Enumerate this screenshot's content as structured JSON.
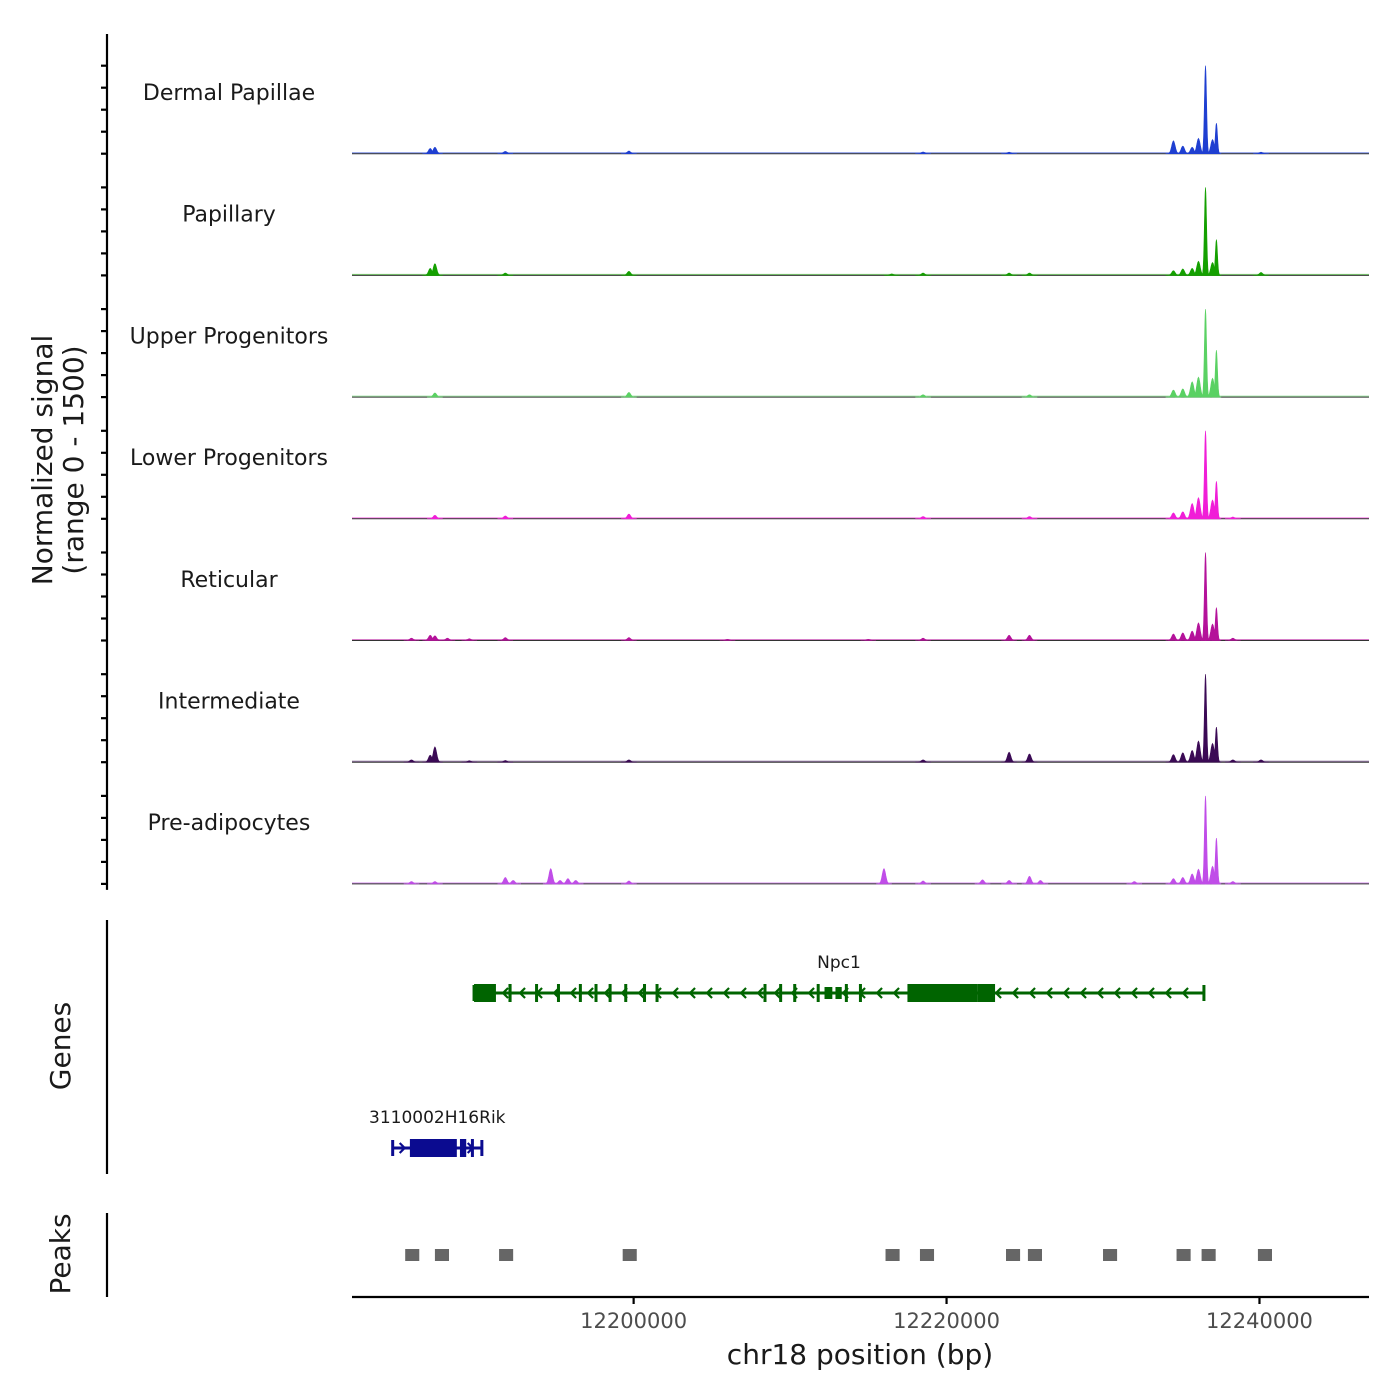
{
  "chart_data": {
    "type": "area",
    "title": "",
    "y_axis_title": [
      "Normalized signal",
      "(range 0 - 1500)"
    ],
    "ylim": [
      0,
      1500
    ],
    "xlabel": "chr18 position (bp)",
    "xlim": [
      12182000,
      12247000
    ],
    "x_ticks": [
      {
        "value": 12200000,
        "label": "12200000"
      },
      {
        "value": 12220000,
        "label": "12220000"
      },
      {
        "value": 12240000,
        "label": "12240000"
      }
    ],
    "series": [
      {
        "name": "Dermal Papillae",
        "color": "#1f3fd1",
        "peaks": [
          [
            12187000,
            90
          ],
          [
            12187300,
            110
          ],
          [
            12191800,
            40
          ],
          [
            12199700,
            45
          ],
          [
            12218500,
            30
          ],
          [
            12224000,
            25
          ],
          [
            12234500,
            220
          ],
          [
            12235100,
            130
          ],
          [
            12235700,
            110
          ],
          [
            12236100,
            260
          ],
          [
            12236550,
            1500
          ],
          [
            12237000,
            240
          ],
          [
            12237250,
            520
          ],
          [
            12240100,
            25
          ]
        ]
      },
      {
        "name": "Papillary",
        "color": "#14a000",
        "peaks": [
          [
            12187000,
            120
          ],
          [
            12187300,
            200
          ],
          [
            12191800,
            40
          ],
          [
            12199700,
            70
          ],
          [
            12216500,
            25
          ],
          [
            12218500,
            40
          ],
          [
            12224000,
            40
          ],
          [
            12225300,
            40
          ],
          [
            12234500,
            80
          ],
          [
            12235100,
            110
          ],
          [
            12235700,
            120
          ],
          [
            12236100,
            240
          ],
          [
            12236550,
            1500
          ],
          [
            12237000,
            220
          ],
          [
            12237250,
            610
          ],
          [
            12240100,
            50
          ]
        ]
      },
      {
        "name": "Upper Progenitors",
        "color": "#5ad163",
        "peaks": [
          [
            12187300,
            70
          ],
          [
            12199700,
            80
          ],
          [
            12218500,
            40
          ],
          [
            12225300,
            40
          ],
          [
            12234500,
            120
          ],
          [
            12235100,
            140
          ],
          [
            12235700,
            260
          ],
          [
            12236100,
            340
          ],
          [
            12236550,
            1500
          ],
          [
            12237000,
            320
          ],
          [
            12237250,
            800
          ]
        ]
      },
      {
        "name": "Lower Progenitors",
        "color": "#f01ed7",
        "peaks": [
          [
            12187300,
            60
          ],
          [
            12191800,
            50
          ],
          [
            12199700,
            80
          ],
          [
            12218500,
            40
          ],
          [
            12225300,
            40
          ],
          [
            12234500,
            100
          ],
          [
            12235100,
            120
          ],
          [
            12235700,
            260
          ],
          [
            12236100,
            360
          ],
          [
            12236550,
            1500
          ],
          [
            12237000,
            320
          ],
          [
            12237250,
            640
          ],
          [
            12238300,
            30
          ]
        ]
      },
      {
        "name": "Reticular",
        "color": "#b4129a",
        "peaks": [
          [
            12185800,
            40
          ],
          [
            12187000,
            90
          ],
          [
            12187300,
            80
          ],
          [
            12188100,
            40
          ],
          [
            12189500,
            30
          ],
          [
            12191800,
            50
          ],
          [
            12199700,
            50
          ],
          [
            12206000,
            20
          ],
          [
            12215000,
            20
          ],
          [
            12218500,
            40
          ],
          [
            12224000,
            90
          ],
          [
            12225300,
            90
          ],
          [
            12234500,
            110
          ],
          [
            12235100,
            130
          ],
          [
            12235700,
            160
          ],
          [
            12236100,
            300
          ],
          [
            12236550,
            1500
          ],
          [
            12237000,
            280
          ],
          [
            12237250,
            560
          ],
          [
            12238300,
            40
          ]
        ]
      },
      {
        "name": "Intermediate",
        "color": "#3b0a55",
        "peaks": [
          [
            12185800,
            40
          ],
          [
            12187000,
            120
          ],
          [
            12187300,
            260
          ],
          [
            12189500,
            25
          ],
          [
            12191800,
            30
          ],
          [
            12199700,
            40
          ],
          [
            12218500,
            40
          ],
          [
            12224000,
            170
          ],
          [
            12225300,
            140
          ],
          [
            12234500,
            130
          ],
          [
            12235100,
            160
          ],
          [
            12235700,
            200
          ],
          [
            12236100,
            360
          ],
          [
            12236550,
            1500
          ],
          [
            12237000,
            320
          ],
          [
            12237250,
            600
          ],
          [
            12238300,
            40
          ],
          [
            12240100,
            40
          ]
        ]
      },
      {
        "name": "Pre-adipocytes",
        "color": "#c04de8",
        "peaks": [
          [
            12185800,
            40
          ],
          [
            12187300,
            40
          ],
          [
            12191800,
            110
          ],
          [
            12192300,
            60
          ],
          [
            12194700,
            260
          ],
          [
            12195300,
            60
          ],
          [
            12195800,
            90
          ],
          [
            12196300,
            60
          ],
          [
            12199700,
            50
          ],
          [
            12216000,
            260
          ],
          [
            12218500,
            50
          ],
          [
            12222300,
            70
          ],
          [
            12224000,
            60
          ],
          [
            12225300,
            130
          ],
          [
            12226000,
            60
          ],
          [
            12232000,
            40
          ],
          [
            12234500,
            90
          ],
          [
            12235100,
            110
          ],
          [
            12235700,
            170
          ],
          [
            12236100,
            250
          ],
          [
            12236550,
            1500
          ],
          [
            12237000,
            300
          ],
          [
            12237250,
            780
          ],
          [
            12238300,
            40
          ]
        ]
      }
    ],
    "genes": [
      {
        "name": "Npc1",
        "color": "#006400",
        "start": 12189800,
        "end": 12236450,
        "strand": "-",
        "row": 1,
        "exons": [
          [
            12189800,
            12191200
          ],
          [
            12192000,
            12192200
          ],
          [
            12193700,
            12193850
          ],
          [
            12195100,
            12195250
          ],
          [
            12196500,
            12196650
          ],
          [
            12197500,
            12197650
          ],
          [
            12198400,
            12198550
          ],
          [
            12199400,
            12199550
          ],
          [
            12200600,
            12200750
          ],
          [
            12201400,
            12201550
          ],
          [
            12208300,
            12208450
          ],
          [
            12209300,
            12209450
          ],
          [
            12210200,
            12210350
          ],
          [
            12211700,
            12211850
          ],
          [
            12213500,
            12213650
          ],
          [
            12214400,
            12214550
          ],
          [
            12217500,
            12222000
          ],
          [
            12222000,
            12223100
          ]
        ],
        "thin_exons": [
          [
            12212200,
            12212700
          ],
          [
            12212900,
            12213300
          ]
        ]
      },
      {
        "name": "3110002H16Rik",
        "color": "#0b0b90",
        "start": 12184600,
        "end": 12190300,
        "strand": "+",
        "row": 2,
        "exons": [
          [
            12185700,
            12188700
          ],
          [
            12188900,
            12189300
          ],
          [
            12189600,
            12189750
          ]
        ],
        "thin_exons": []
      }
    ],
    "peaks": [
      [
        12185400,
        12186300
      ],
      [
        12187300,
        12188200
      ],
      [
        12191400,
        12192300
      ],
      [
        12199300,
        12200200
      ],
      [
        12216100,
        12217000
      ],
      [
        12218300,
        12219200
      ],
      [
        12223800,
        12224700
      ],
      [
        12225200,
        12226100
      ],
      [
        12230000,
        12230900
      ],
      [
        12234700,
        12235600
      ],
      [
        12236300,
        12237200
      ],
      [
        12239900,
        12240800
      ]
    ],
    "panel_titles": {
      "coverage": "Normalized signal",
      "genes": "Genes",
      "peaks": "Peaks"
    }
  },
  "colors": {
    "peak_fill": "#666666",
    "axis": "#000000"
  }
}
